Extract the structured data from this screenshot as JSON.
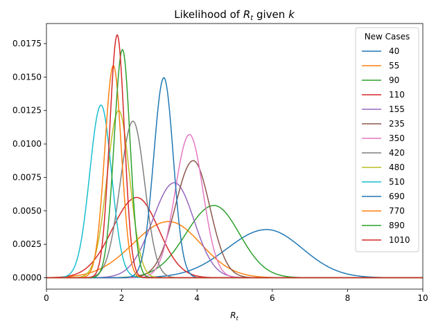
{
  "chart_data": {
    "type": "line",
    "title_main": "Likelihood of ",
    "title_var": "R",
    "title_sub": "t",
    "title_mid": " given ",
    "title_k": "k",
    "xlabel_var": "R",
    "xlabel_sub": "t",
    "xlim": [
      0,
      10
    ],
    "ylim": [
      -0.00085,
      0.019
    ],
    "xticks": [
      0,
      2,
      4,
      6,
      8,
      10
    ],
    "xtick_labels": [
      "0",
      "2",
      "4",
      "6",
      "8",
      "10"
    ],
    "yticks": [
      0.0,
      0.0025,
      0.005,
      0.0075,
      0.01,
      0.0125,
      0.015,
      0.0175
    ],
    "ytick_labels": [
      "0.0000",
      "0.0025",
      "0.0050",
      "0.0075",
      "0.0100",
      "0.0125",
      "0.0150",
      "0.0175"
    ],
    "legend": {
      "title": "New Cases",
      "placement": "upper right"
    },
    "series": [
      {
        "name": "40",
        "color": "#1f77b4",
        "peak_x": 5.85,
        "peak_y": 0.0036,
        "sigma_left": 1.05,
        "sigma_right": 0.95
      },
      {
        "name": "55",
        "color": "#ff7f0e",
        "peak_x": 3.25,
        "peak_y": 0.0042,
        "sigma_left": 0.95,
        "sigma_right": 0.85
      },
      {
        "name": "90",
        "color": "#2ca02c",
        "peak_x": 4.45,
        "peak_y": 0.0054,
        "sigma_left": 0.75,
        "sigma_right": 0.68
      },
      {
        "name": "110",
        "color": "#d62728",
        "peak_x": 2.4,
        "peak_y": 0.006,
        "sigma_left": 0.65,
        "sigma_right": 0.58
      },
      {
        "name": "155",
        "color": "#9467bd",
        "peak_x": 3.4,
        "peak_y": 0.0071,
        "sigma_left": 0.58,
        "sigma_right": 0.52
      },
      {
        "name": "235",
        "color": "#8c564b",
        "peak_x": 3.9,
        "peak_y": 0.00875,
        "sigma_left": 0.48,
        "sigma_right": 0.44
      },
      {
        "name": "350",
        "color": "#e377c2",
        "peak_x": 3.8,
        "peak_y": 0.0107,
        "sigma_left": 0.38,
        "sigma_right": 0.36
      },
      {
        "name": "420",
        "color": "#7f7f7f",
        "peak_x": 2.3,
        "peak_y": 0.0117,
        "sigma_left": 0.34,
        "sigma_right": 0.31
      },
      {
        "name": "480",
        "color": "#bcbd22",
        "peak_x": 1.92,
        "peak_y": 0.0125,
        "sigma_left": 0.31,
        "sigma_right": 0.29
      },
      {
        "name": "510",
        "color": "#17becf",
        "peak_x": 1.45,
        "peak_y": 0.0129,
        "sigma_left": 0.3,
        "sigma_right": 0.28
      },
      {
        "name": "690",
        "color": "#1f77b4",
        "peak_x": 3.12,
        "peak_y": 0.01495,
        "sigma_left": 0.27,
        "sigma_right": 0.25
      },
      {
        "name": "770",
        "color": "#ff7f0e",
        "peak_x": 1.78,
        "peak_y": 0.01585,
        "sigma_left": 0.23,
        "sigma_right": 0.21
      },
      {
        "name": "890",
        "color": "#2ca02c",
        "peak_x": 2.02,
        "peak_y": 0.01705,
        "sigma_left": 0.22,
        "sigma_right": 0.2
      },
      {
        "name": "1010",
        "color": "#d62728",
        "peak_x": 1.88,
        "peak_y": 0.01815,
        "sigma_left": 0.2,
        "sigma_right": 0.19
      }
    ]
  }
}
